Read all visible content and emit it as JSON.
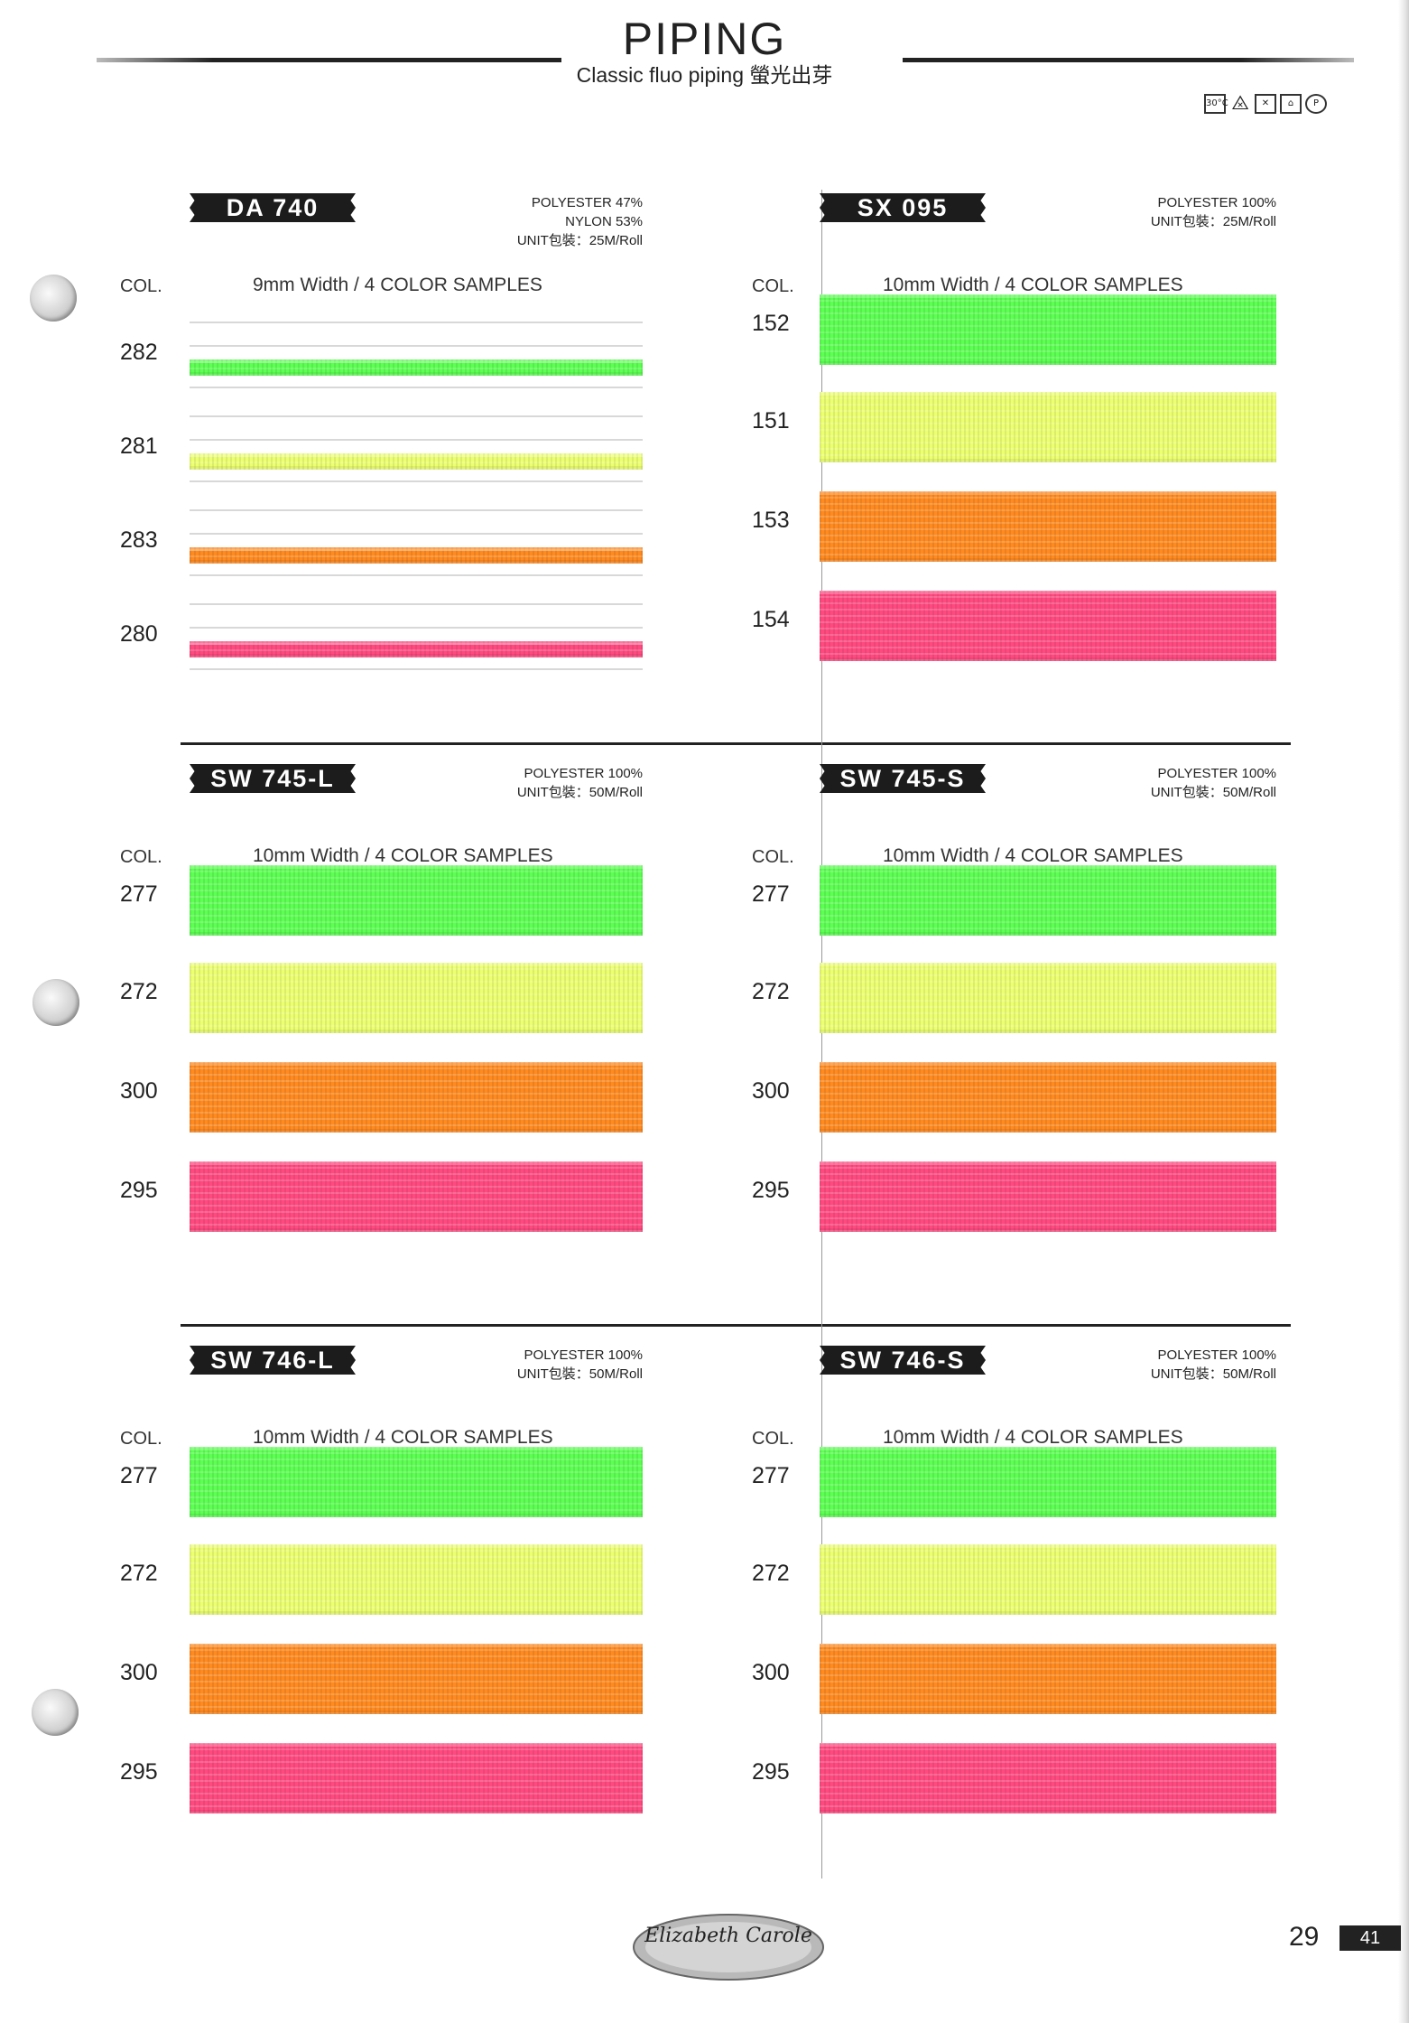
{
  "header": {
    "title": "PIPING",
    "subtitle": "Classic fluo piping 螢光出芽"
  },
  "care_icons": [
    "wash-30-icon",
    "no-bleach-icon",
    "no-tumble-dry-icon",
    "iron-icon",
    "dry-clean-icon"
  ],
  "care_wash_text": "30°C",
  "colors": {
    "green": "#5cff52",
    "yellow": "#ecff70",
    "orange": "#ff8a20",
    "pink": "#ff4a80"
  },
  "panels": [
    {
      "code": "DA 740",
      "spec": [
        "POLYESTER 47%",
        "NYLON 53%",
        "UNIT包裝：25M/Roll"
      ],
      "col_label": "COL.",
      "width_label": "9mm Width  /  4 COLOR SAMPLES",
      "samples": [
        {
          "code": "282",
          "color": "green"
        },
        {
          "code": "281",
          "color": "yellow"
        },
        {
          "code": "283",
          "color": "orange"
        },
        {
          "code": "280",
          "color": "pink"
        }
      ]
    },
    {
      "code": "SX 095",
      "spec": [
        "POLYESTER 100%",
        "UNIT包裝：25M/Roll"
      ],
      "col_label": "COL.",
      "width_label": "10mm Width  /  4 COLOR SAMPLES",
      "samples": [
        {
          "code": "152",
          "color": "green"
        },
        {
          "code": "151",
          "color": "yellow"
        },
        {
          "code": "153",
          "color": "orange"
        },
        {
          "code": "154",
          "color": "pink"
        }
      ]
    },
    {
      "code": "SW 745-L",
      "spec": [
        "POLYESTER 100%",
        "UNIT包裝：50M/Roll"
      ],
      "col_label": "COL.",
      "width_label": "10mm Width  /  4 COLOR SAMPLES",
      "samples": [
        {
          "code": "277",
          "color": "green"
        },
        {
          "code": "272",
          "color": "yellow"
        },
        {
          "code": "300",
          "color": "orange"
        },
        {
          "code": "295",
          "color": "pink"
        }
      ]
    },
    {
      "code": "SW 745-S",
      "spec": [
        "POLYESTER 100%",
        "UNIT包裝：50M/Roll"
      ],
      "col_label": "COL.",
      "width_label": "10mm Width  /  4 COLOR SAMPLES",
      "samples": [
        {
          "code": "277",
          "color": "green"
        },
        {
          "code": "272",
          "color": "yellow"
        },
        {
          "code": "300",
          "color": "orange"
        },
        {
          "code": "295",
          "color": "pink"
        }
      ]
    },
    {
      "code": "SW 746-L",
      "spec": [
        "POLYESTER 100%",
        "UNIT包裝：50M/Roll"
      ],
      "col_label": "COL.",
      "width_label": "10mm Width  /  4 COLOR SAMPLES",
      "samples": [
        {
          "code": "277",
          "color": "green"
        },
        {
          "code": "272",
          "color": "yellow"
        },
        {
          "code": "300",
          "color": "orange"
        },
        {
          "code": "295",
          "color": "pink"
        }
      ]
    },
    {
      "code": "SW 746-S",
      "spec": [
        "POLYESTER 100%",
        "UNIT包裝：50M/Roll"
      ],
      "col_label": "COL.",
      "width_label": "10mm Width  /  4 COLOR SAMPLES",
      "samples": [
        {
          "code": "277",
          "color": "green"
        },
        {
          "code": "272",
          "color": "yellow"
        },
        {
          "code": "300",
          "color": "orange"
        },
        {
          "code": "295",
          "color": "pink"
        }
      ]
    }
  ],
  "footer": {
    "logo_text": "Elizabeth Carole",
    "page_number": "29",
    "page_badge": "41"
  }
}
